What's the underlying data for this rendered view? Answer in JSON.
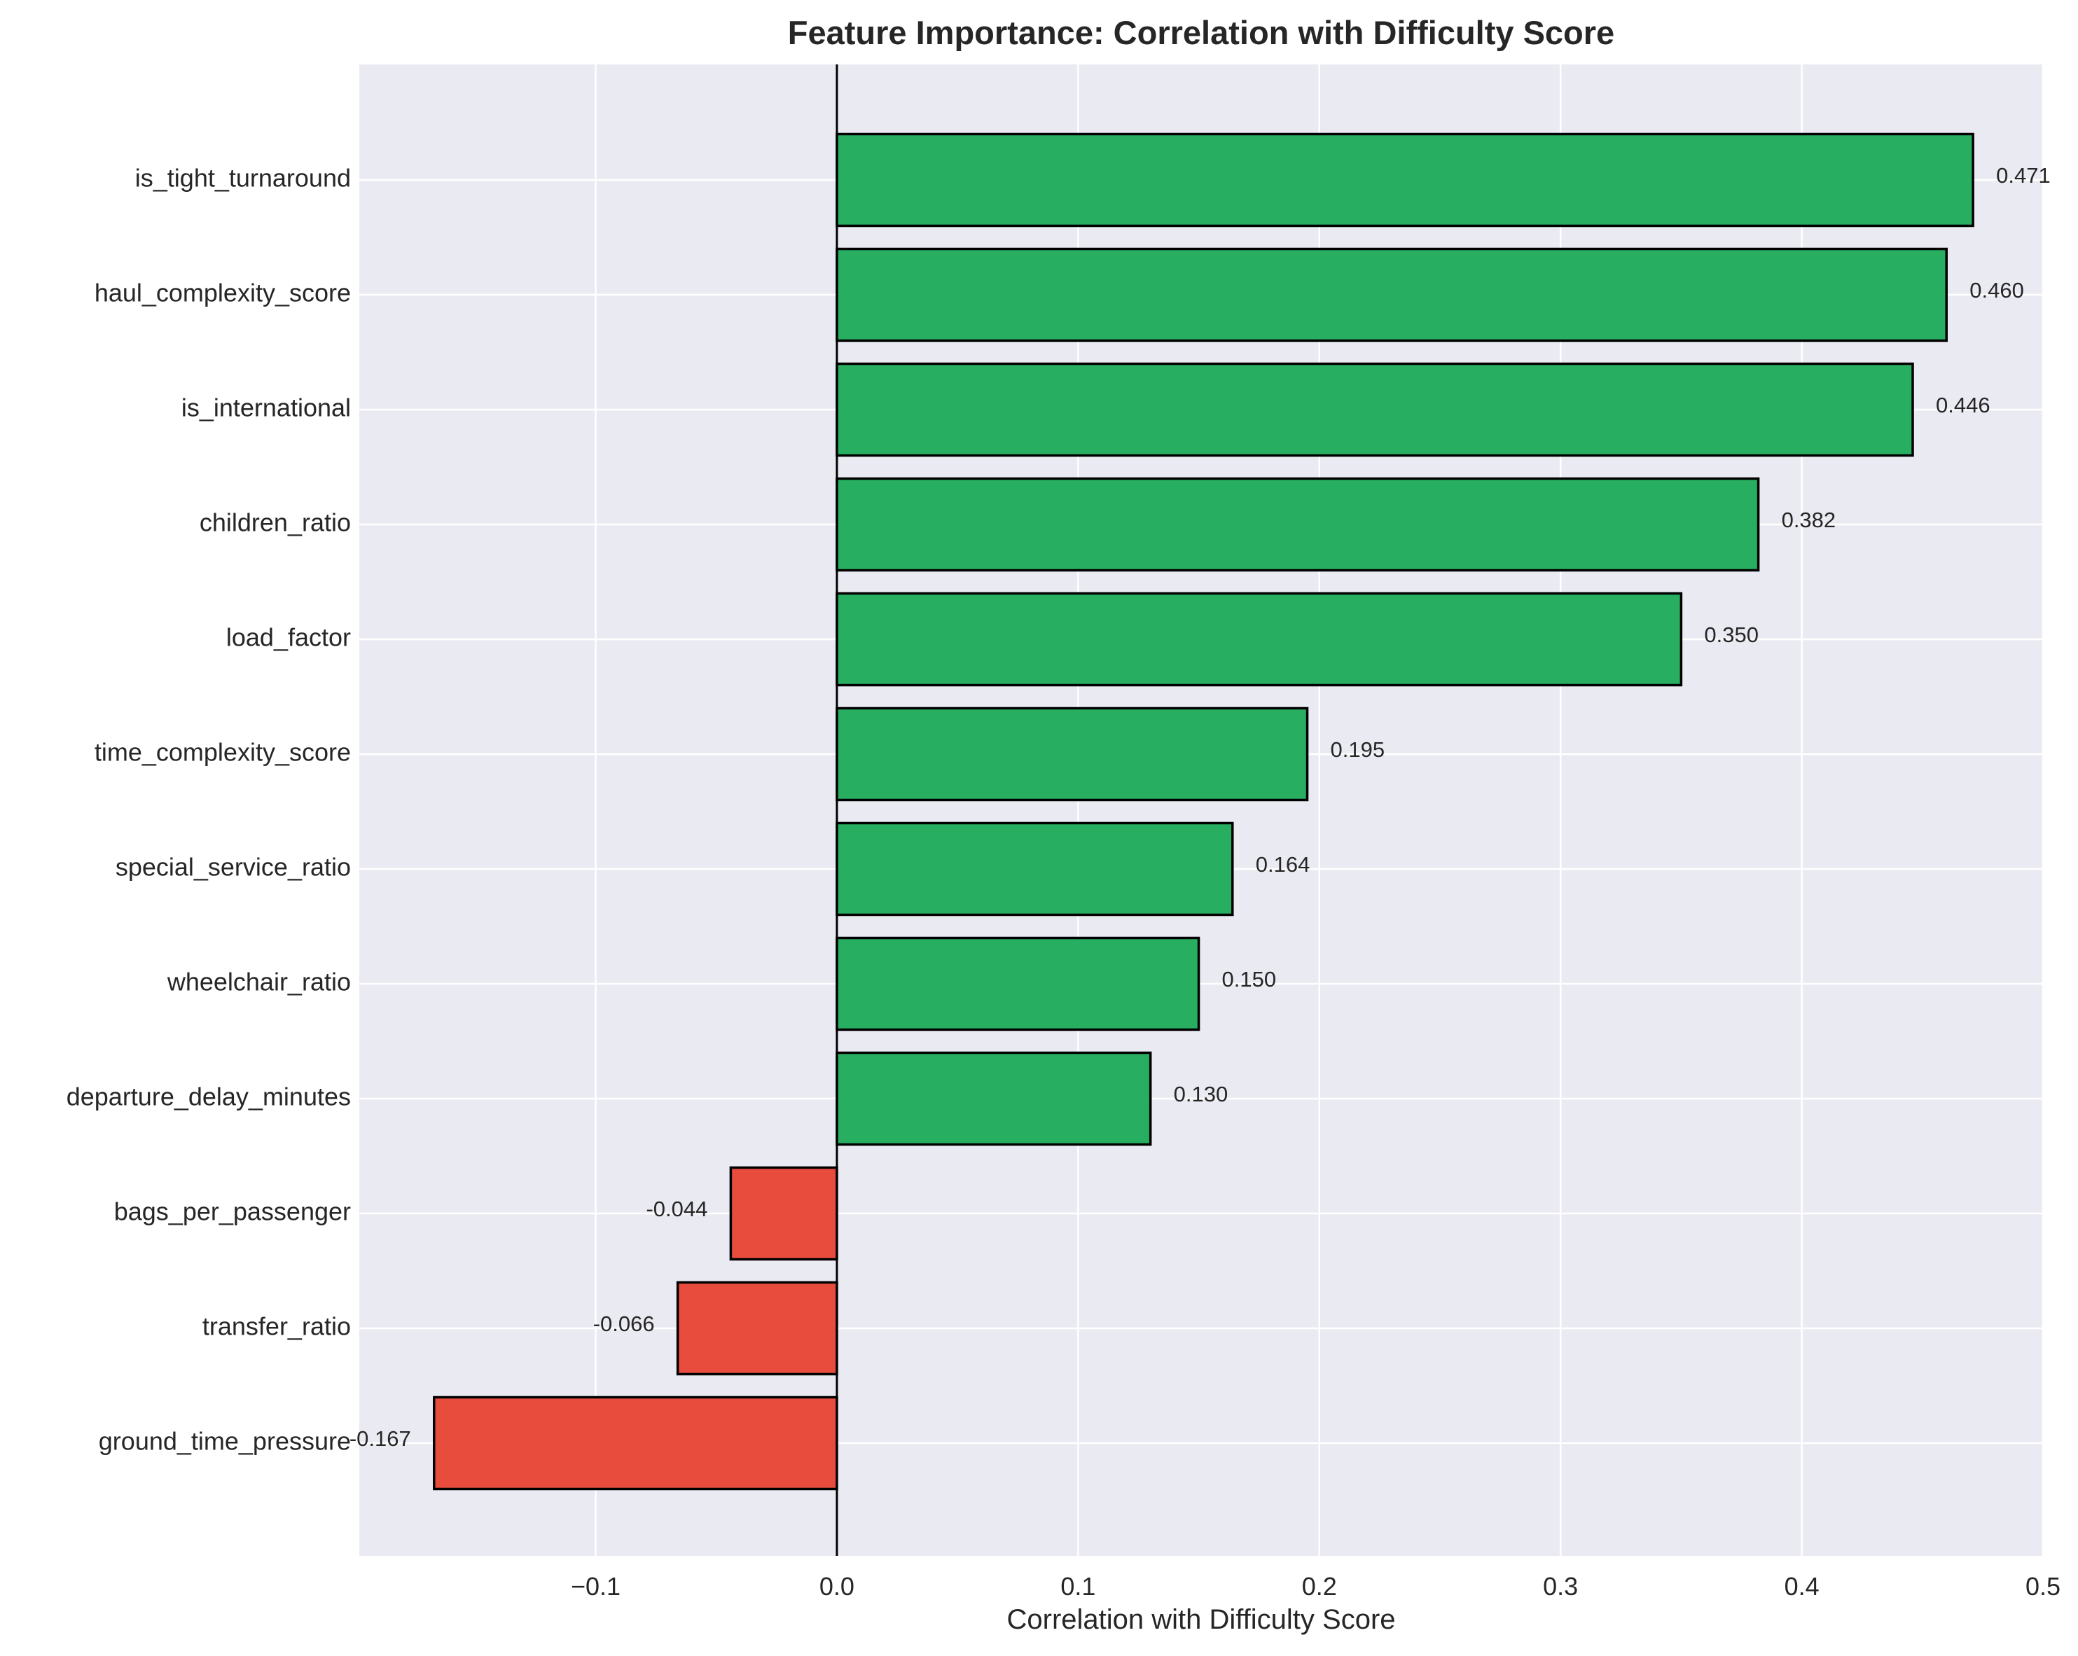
{
  "chart_data": {
    "type": "bar",
    "orientation": "horizontal",
    "title": "Feature Importance: Correlation with Difficulty Score",
    "xlabel": "Correlation with Difficulty Score",
    "ylabel": "",
    "xlim": [
      -0.198,
      0.5
    ],
    "xticks": [
      -0.1,
      0.0,
      0.1,
      0.2,
      0.3,
      0.4,
      0.5
    ],
    "xtick_labels": [
      "−0.1",
      "0.0",
      "0.1",
      "0.2",
      "0.3",
      "0.4",
      "0.5"
    ],
    "grid": true,
    "reference_line": 0,
    "colors": {
      "positive": "#27ae60",
      "negative": "#e74c3c",
      "plot_background": "#eaeaf2",
      "grid": "#ffffff",
      "edge": "#000000"
    },
    "categories": [
      "is_tight_turnaround",
      "haul_complexity_score",
      "is_international",
      "children_ratio",
      "load_factor",
      "time_complexity_score",
      "special_service_ratio",
      "wheelchair_ratio",
      "departure_delay_minutes",
      "bags_per_passenger",
      "transfer_ratio",
      "ground_time_pressure"
    ],
    "values": [
      0.471,
      0.46,
      0.446,
      0.382,
      0.35,
      0.195,
      0.164,
      0.15,
      0.13,
      -0.044,
      -0.066,
      -0.167
    ],
    "value_labels": [
      "0.471",
      "0.460",
      "0.446",
      "0.382",
      "0.350",
      "0.195",
      "0.164",
      "0.150",
      "0.130",
      "-0.044",
      "-0.066",
      "-0.167"
    ]
  }
}
